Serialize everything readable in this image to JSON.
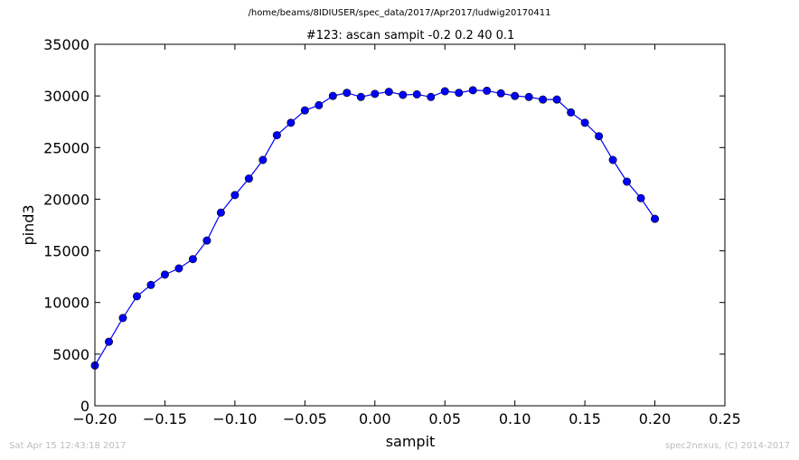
{
  "figure": {
    "suptitle": "/home/beams/8IDIUSER/spec_data/2017/Apr2017/ludwig20170411",
    "footer_left": "Sat Apr 15 12:43:18 2017",
    "footer_right": "spec2nexus, (C) 2014-2017"
  },
  "chart_data": {
    "type": "line",
    "title": "#123: ascan  sampit -0.2 0.2  40 0.1",
    "xlabel": "sampit",
    "ylabel": "pind3",
    "xlim": [
      -0.2,
      0.25
    ],
    "ylim": [
      0,
      35000
    ],
    "xticks": [
      -0.2,
      -0.15,
      -0.1,
      -0.05,
      0.0,
      0.05,
      0.1,
      0.15,
      0.2,
      0.25
    ],
    "xtick_labels": [
      "−0.20",
      "−0.15",
      "−0.10",
      "−0.05",
      "0.00",
      "0.05",
      "0.10",
      "0.15",
      "0.20",
      "0.25"
    ],
    "yticks": [
      0,
      5000,
      10000,
      15000,
      20000,
      25000,
      30000,
      35000
    ],
    "ytick_labels": [
      "0",
      "5000",
      "10000",
      "15000",
      "20000",
      "25000",
      "30000",
      "35000"
    ],
    "grid": false,
    "color": "#0000ff",
    "series": [
      {
        "x": [
          -0.2,
          -0.19,
          -0.18,
          -0.17,
          -0.16,
          -0.15,
          -0.14,
          -0.13,
          -0.12,
          -0.11,
          -0.1,
          -0.09,
          -0.08,
          -0.07,
          -0.06,
          -0.05,
          -0.04,
          -0.03,
          -0.02,
          -0.01,
          0.0,
          0.01,
          0.02,
          0.03,
          0.04,
          0.05,
          0.06,
          0.07,
          0.08,
          0.09,
          0.1,
          0.11,
          0.12,
          0.13,
          0.14,
          0.15,
          0.16,
          0.17,
          0.18,
          0.19,
          0.2
        ],
        "values": [
          3900,
          6200,
          8500,
          10600,
          11700,
          12700,
          13300,
          14200,
          16000,
          18700,
          20400,
          22000,
          23800,
          26200,
          27400,
          28600,
          29100,
          30000,
          30300,
          29900,
          30200,
          30400,
          30100,
          30150,
          29900,
          30450,
          30300,
          30550,
          30500,
          30250,
          30000,
          29900,
          29650,
          29650,
          28400,
          27400,
          26100,
          23800,
          21700,
          20100,
          18100
        ]
      }
    ]
  }
}
